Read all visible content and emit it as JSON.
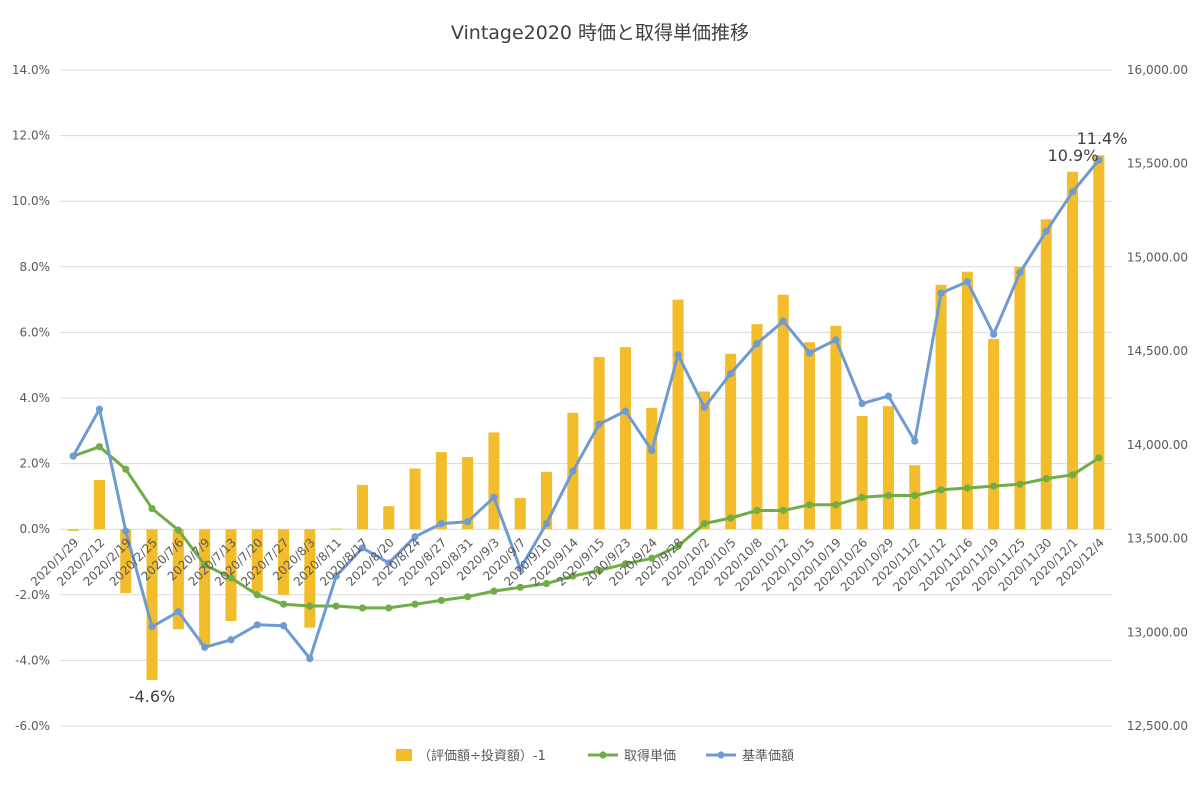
{
  "chart_data": {
    "type": "bar",
    "title": "Vintage2020 時価と取得単価推移",
    "categories": [
      "2020/1/29",
      "2020/2/12",
      "2020/2/19",
      "2020/2/25",
      "2020/7/6",
      "2020/7/9",
      "2020/7/13",
      "2020/7/20",
      "2020/7/27",
      "2020/8/3",
      "2020/8/11",
      "2020/8/17",
      "2020/8/20",
      "2020/8/24",
      "2020/8/27",
      "2020/8/31",
      "2020/9/3",
      "2020/9/7",
      "2020/9/10",
      "2020/9/14",
      "2020/9/15",
      "2020/9/23",
      "2020/9/24",
      "2020/9/28",
      "2020/10/2",
      "2020/10/5",
      "2020/10/8",
      "2020/10/12",
      "2020/10/15",
      "2020/10/19",
      "2020/10/26",
      "2020/10/29",
      "2020/11/2",
      "2020/11/12",
      "2020/11/16",
      "2020/11/19",
      "2020/11/25",
      "2020/11/30",
      "2020/12/1",
      "2020/12/4"
    ],
    "y_left": {
      "min": -6.0,
      "max": 14.0,
      "step": 2.0,
      "tick_labels": [
        "-6.0%",
        "-4.0%",
        "-2.0%",
        "0.0%",
        "2.0%",
        "4.0%",
        "6.0%",
        "8.0%",
        "10.0%",
        "12.0%",
        "14.0%"
      ]
    },
    "y_right": {
      "min": 12500,
      "max": 16000,
      "step": 500,
      "tick_labels": [
        "12,500.00",
        "13,000.00",
        "13,500.00",
        "14,000.00",
        "14,500.00",
        "15,000.00",
        "15,500.00",
        "16,000.00"
      ]
    },
    "grid": true,
    "legend_position": "bottom",
    "series": [
      {
        "name": "（評価額÷投資額）-1",
        "type": "bar",
        "axis": "left",
        "color": "#F2BC2B",
        "values": [
          -0.05,
          1.5,
          -1.95,
          -4.6,
          -3.05,
          -3.55,
          -2.8,
          -1.9,
          -2.0,
          -3.0,
          0.02,
          1.35,
          0.7,
          1.85,
          2.35,
          2.2,
          2.95,
          0.95,
          1.75,
          3.55,
          5.25,
          5.55,
          3.7,
          7.0,
          4.2,
          5.35,
          6.25,
          7.15,
          5.7,
          6.2,
          3.45,
          3.75,
          1.95,
          7.45,
          7.85,
          5.8,
          8.0,
          9.45,
          10.9,
          11.4
        ]
      },
      {
        "name": "取得単価",
        "type": "line",
        "axis": "right",
        "color": "#70AD47",
        "values": [
          13940,
          13990,
          13870,
          13660,
          13545,
          13360,
          13290,
          13200,
          13150,
          13140,
          13140,
          13130,
          13130,
          13150,
          13170,
          13190,
          13220,
          13240,
          13260,
          13300,
          13330,
          13365,
          13395,
          13460,
          13580,
          13610,
          13650,
          13650,
          13680,
          13680,
          13720,
          13730,
          13730,
          13760,
          13770,
          13780,
          13790,
          13820,
          13840,
          13930
        ]
      },
      {
        "name": "基準価額",
        "type": "line",
        "axis": "right",
        "color": "#6E9BD4",
        "values": [
          13940,
          14190,
          13540,
          13030,
          13110,
          12920,
          12960,
          13040,
          13035,
          12860,
          13300,
          13450,
          13370,
          13510,
          13580,
          13590,
          13720,
          13340,
          13580,
          13860,
          14110,
          14180,
          13970,
          14480,
          14200,
          14380,
          14540,
          14660,
          14490,
          14560,
          14220,
          14260,
          14020,
          14810,
          14870,
          14590,
          14920,
          15140,
          15350,
          15520
        ]
      }
    ],
    "annotations": [
      {
        "text": "-4.6%",
        "series": 0,
        "index": 3
      },
      {
        "text": "10.9%",
        "series": 0,
        "index": 38
      },
      {
        "text": "11.4%",
        "series": 0,
        "index": 39
      }
    ]
  }
}
